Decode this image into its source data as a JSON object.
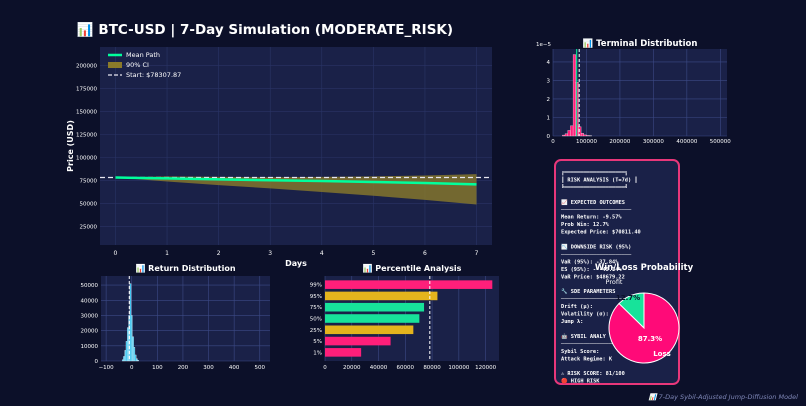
{
  "suptitle": "📊 BTC-USD | 7-Day Simulation (MODERATE_RISK)",
  "footer": "📊 7-Day Sybil-Adjusted Jump-Diffusion Model",
  "colors": {
    "background": "#0c1029",
    "panel": "#1a2148",
    "mean_path": "#00ff9c",
    "ci": "#8a7a2a",
    "start_line": "#e6e6f0",
    "hist_cyan": "#36c3f0",
    "hist_magenta": "#ff1f7a",
    "bar_magenta": "#ff1f7a",
    "bar_gold": "#e4b41d",
    "bar_green": "#17e39a",
    "risk_border": "#e8377a",
    "pie_profit": "#17e39a",
    "pie_loss": "#ff0a78"
  },
  "chart_data": [
    {
      "id": "main",
      "type": "line",
      "title": "",
      "xlabel": "Days",
      "ylabel": "Price (USD)",
      "xlim": [
        -0.3,
        7.3
      ],
      "ylim": [
        5000,
        220000
      ],
      "x_ticks": [
        0,
        1,
        2,
        3,
        4,
        5,
        6,
        7
      ],
      "y_ticks": [
        25000,
        50000,
        75000,
        100000,
        125000,
        150000,
        175000,
        200000
      ],
      "grid": true,
      "legend_placement": "top-left",
      "legend": [
        "Mean Path",
        "90% CI",
        "Start: $78307.87"
      ],
      "start_price": 78307.87,
      "x": [
        0,
        1,
        2,
        3,
        4,
        5,
        6,
        7
      ],
      "series": [
        {
          "name": "Mean Path",
          "values": [
            78307,
            77300,
            76200,
            75300,
            74500,
            73400,
            72300,
            70811
          ]
        },
        {
          "name": "90% CI lower",
          "values": [
            78307,
            74000,
            70000,
            66500,
            62500,
            58500,
            54000,
            49000
          ]
        },
        {
          "name": "90% CI upper",
          "values": [
            78307,
            79500,
            79000,
            78500,
            79000,
            79500,
            80500,
            82000
          ]
        }
      ]
    },
    {
      "id": "terminal",
      "type": "bar",
      "title": "📊 Terminal Distribution",
      "scale_label": "1e−5",
      "xlim": [
        0,
        520000
      ],
      "ylim": [
        0,
        4.7
      ],
      "x_ticks": [
        0,
        100000,
        200000,
        300000,
        400000,
        500000
      ],
      "y_ticks": [
        0,
        1,
        2,
        3,
        4
      ],
      "grid": true,
      "bin_width": 8000,
      "bins_x": [
        32000,
        40000,
        48000,
        56000,
        64000,
        72000,
        80000,
        88000,
        96000,
        104000,
        112000
      ],
      "bins_y": [
        0.05,
        0.12,
        0.3,
        0.55,
        4.4,
        2.9,
        0.5,
        0.15,
        0.06,
        0.03,
        0.01
      ],
      "markers": [
        78307,
        70811
      ]
    },
    {
      "id": "returns",
      "type": "bar",
      "title": "📊 Return Distribution",
      "xlim": [
        -120,
        540
      ],
      "ylim": [
        0,
        56000
      ],
      "x_ticks": [
        -100,
        0,
        100,
        200,
        300,
        400,
        500
      ],
      "y_ticks": [
        0,
        10000,
        20000,
        30000,
        40000,
        50000
      ],
      "grid": true,
      "bin_width": 5,
      "bins_x": [
        -35,
        -30,
        -25,
        -20,
        -15,
        -10,
        -5,
        0,
        5,
        10,
        15,
        20,
        25
      ],
      "bins_y": [
        800,
        3000,
        7000,
        13000,
        22000,
        30000,
        51000,
        30000,
        16000,
        9000,
        4000,
        1500,
        500
      ],
      "markers": [
        -9.57
      ]
    },
    {
      "id": "percentiles",
      "type": "bar",
      "orientation": "horizontal",
      "title": "📊 Percentile Analysis",
      "xlim": [
        0,
        130000
      ],
      "x_ticks": [
        0,
        20000,
        40000,
        60000,
        80000,
        100000,
        120000
      ],
      "categories": [
        "99%",
        "95%",
        "75%",
        "50%",
        "25%",
        "5%",
        "1%"
      ],
      "values": [
        125000,
        84000,
        74000,
        70500,
        66000,
        49000,
        27000
      ],
      "bar_colors": [
        "magenta",
        "gold",
        "green",
        "green",
        "gold",
        "magenta",
        "magenta"
      ],
      "markers": [
        78307
      ]
    },
    {
      "id": "winloss",
      "type": "pie",
      "title": "Win/Loss Probability",
      "labels": [
        "Profit",
        "Loss"
      ],
      "values": [
        12.7,
        87.3
      ],
      "value_labels": [
        "12.7%",
        "87.3%"
      ]
    }
  ],
  "risk_panel": {
    "lines": [
      {
        "t": "╔═══════════════════╗",
        "c": "#ffffff"
      },
      {
        "t": "║ RISK ANALYSIS (T=7d) ║",
        "c": "#ffffff"
      },
      {
        "t": "╚═══════════════════╝",
        "c": "#ffffff"
      },
      {
        "t": "",
        "c": "#ffffff"
      },
      {
        "t": "📈 EXPECTED OUTCOMES",
        "c": "#ffffff"
      },
      {
        "t": "──────────────────────",
        "c": "#ffffff"
      },
      {
        "t": "Mean Return:      -9.57%",
        "c": "#ffffff"
      },
      {
        "t": "Prob Win:          12.7%",
        "c": "#ffffff"
      },
      {
        "t": "Expected Price:  $70811.40",
        "c": "#ffffff"
      },
      {
        "t": "",
        "c": "#ffffff"
      },
      {
        "t": "📉 DOWNSIDE RISK (95%)",
        "c": "#ffffff"
      },
      {
        "t": "──────────────────────",
        "c": "#ffffff"
      },
      {
        "t": "VaR (95%):        -37.84%",
        "c": "#ffffff"
      },
      {
        "t": "ES (95%):  -      -45.34%",
        "c": "#ffffff"
      },
      {
        "t": "VaR Price:      $48679.22",
        "c": "#ffffff"
      },
      {
        "t": "",
        "c": "#ffffff"
      },
      {
        "t": "🔧 SDE PARAMETERS",
        "c": "#ffffff"
      },
      {
        "t": "──────────────────────",
        "c": "#ffffff"
      },
      {
        "t": "Drift (μ):",
        "c": "#ffffff"
      },
      {
        "t": "Volatility (σ):",
        "c": "#ffffff"
      },
      {
        "t": "Jump λ:",
        "c": "#ffffff"
      },
      {
        "t": "",
        "c": "#ffffff"
      },
      {
        "t": "🤖 SYBIL ANALY",
        "c": "#ffffff"
      },
      {
        "t": "──────────────────────",
        "c": "#ffffff"
      },
      {
        "t": "Sybil Score:",
        "c": "#ffffff"
      },
      {
        "t": "Attack Regime:               K",
        "c": "#ffffff"
      },
      {
        "t": "",
        "c": "#ffffff"
      },
      {
        "t": "⚠ RISK SCORE: 81/100",
        "c": "#ffffff"
      },
      {
        "t": "   🔴 HIGH RISK",
        "c": "#ffffff"
      }
    ]
  }
}
